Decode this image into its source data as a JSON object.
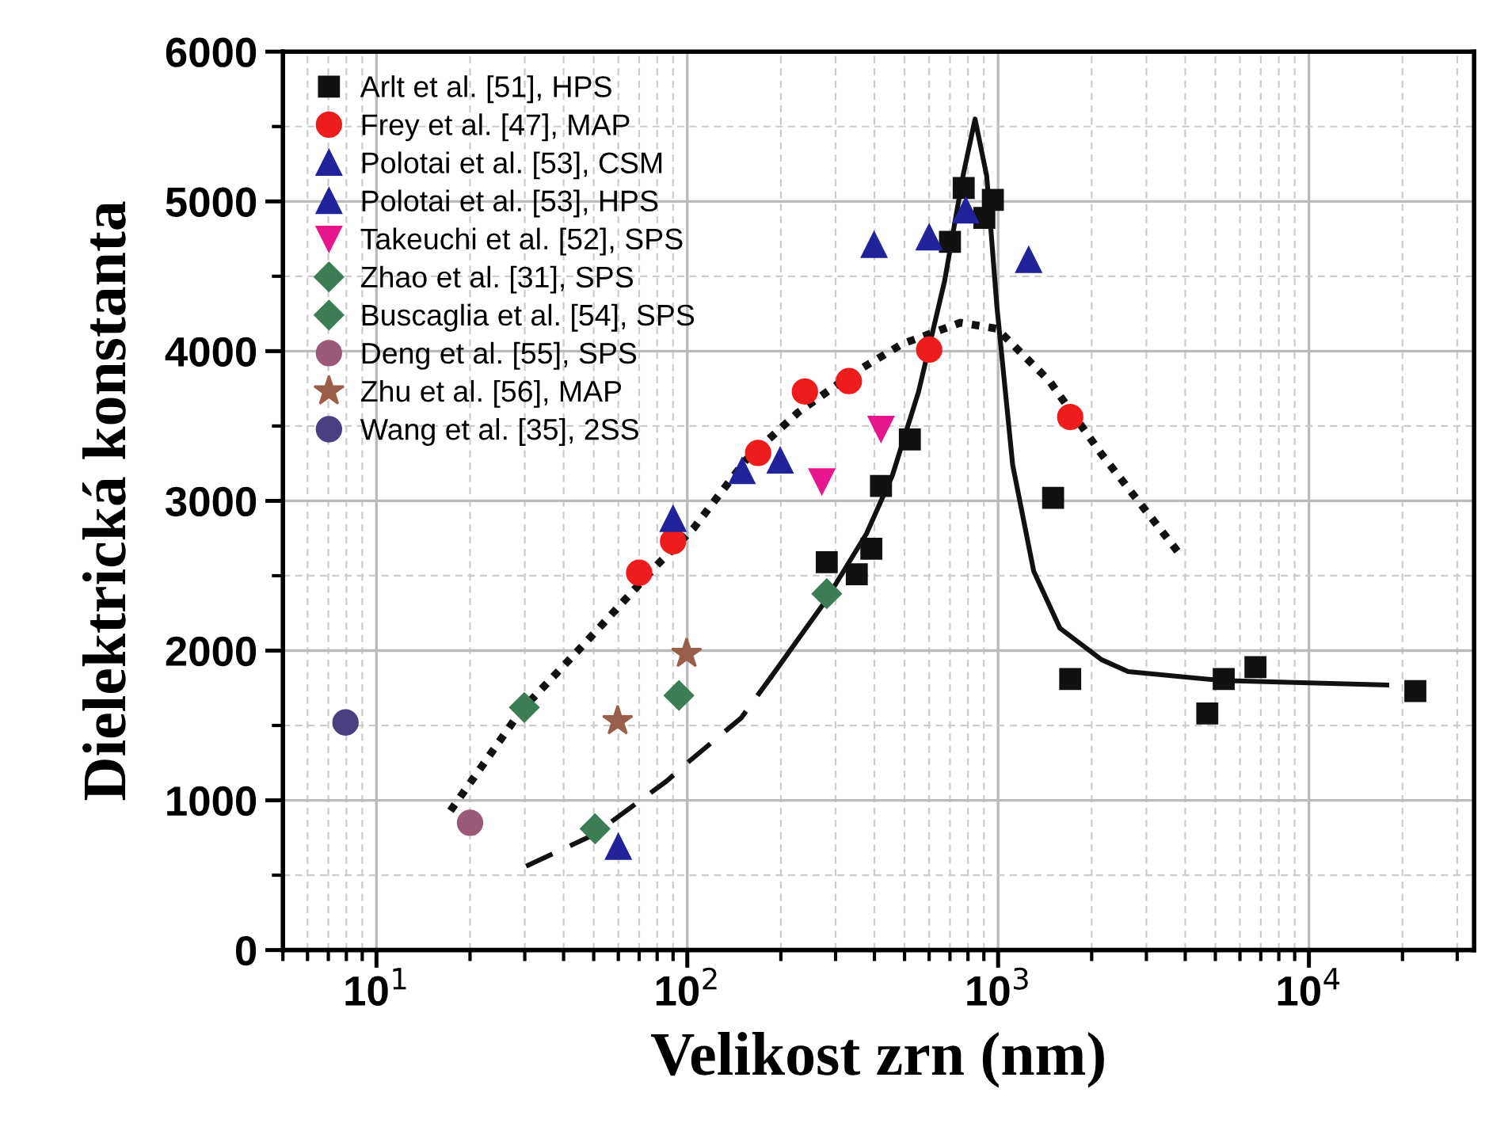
{
  "chart_data": {
    "type": "scatter",
    "xlabel": "Velikost zrn (nm)",
    "ylabel": "Dielektrická konstanta",
    "log": "x",
    "xlim": [
      5,
      34000
    ],
    "xticks": [
      {
        "value": 10,
        "label": "10$^{1}$"
      },
      {
        "value": 100,
        "label": "10$^{2}$"
      },
      {
        "value": 1000,
        "label": "10$^{3}$"
      },
      {
        "value": 10000,
        "label": "10$^{4}$"
      }
    ],
    "ylim": [
      0,
      6000
    ],
    "yticks": [
      0,
      1000,
      2000,
      3000,
      4000,
      5000,
      6000
    ],
    "grid": true,
    "legend": "top left",
    "series": [
      {
        "type": "line",
        "line_style": "solid",
        "color": "#111111",
        "x": [
          187,
          276,
          377,
          457,
          555,
          673,
          771,
          843,
          919,
          991,
          1114,
          1302,
          1580,
          2150,
          2620,
          5250,
          17800
        ],
        "values": [
          1830,
          2320,
          2780,
          3170,
          3730,
          4470,
          5170,
          5550,
          5170,
          4300,
          3240,
          2530,
          2150,
          1940,
          1860,
          1800,
          1770
        ]
      },
      {
        "type": "line",
        "line_style": "dashed",
        "color": "#111111",
        "x": [
          30.3,
          50,
          86,
          100,
          149,
          187
        ],
        "values": [
          560,
          770,
          1130,
          1250,
          1550,
          1830
        ]
      },
      {
        "type": "line",
        "line_style": "dotted",
        "color": "#111111",
        "x": [
          17.3,
          29.2,
          46.4,
          79.8,
          105,
          154,
          227,
          335,
          494,
          757,
          991,
          1463,
          2155,
          3300,
          3920
        ],
        "values": [
          930,
          1600,
          2040,
          2570,
          2820,
          3270,
          3590,
          3840,
          4050,
          4190,
          4150,
          3800,
          3310,
          2820,
          2620
        ]
      },
      {
        "name": "Arlt et al. [51], HPS",
        "marker": "square",
        "color": "#111111",
        "x": [
          775,
          962,
          903,
          700,
          520,
          420,
          391,
          351,
          281,
          1503,
          1706,
          5320,
          4710,
          6730,
          22000
        ],
        "values": [
          5090,
          5010,
          4890,
          4730,
          3410,
          3100,
          2680,
          2510,
          2590,
          3020,
          1810,
          1810,
          1580,
          1890,
          1730
        ]
      },
      {
        "name": "Frey et al. [47], MAP",
        "marker": "circle",
        "color": "#ee1c1c",
        "x": [
          70,
          90,
          169,
          239,
          331,
          600,
          1706
        ],
        "values": [
          2520,
          2730,
          3320,
          3730,
          3800,
          4010,
          3560
        ]
      },
      {
        "name": "Polotai et al. [53], CSM",
        "marker": "triangle",
        "color": "#22229a",
        "x": [
          90,
          150,
          199,
          399,
          600,
          787,
          1254
        ],
        "values": [
          2880,
          3200,
          3270,
          4710,
          4760,
          4940,
          4610
        ]
      },
      {
        "name": "Polotai et al. [53], HPS",
        "marker": "triangle",
        "color": "#22229a",
        "x": [
          60
        ],
        "values": [
          690
        ]
      },
      {
        "name": "Takeuchi et al. [52], SPS",
        "marker": "triangle-down",
        "color": "#e6168c",
        "x": [
          271,
          420
        ],
        "values": [
          3130,
          3480
        ]
      },
      {
        "name": "Zhao et al. [31], SPS",
        "marker": "diamond",
        "color": "#3c7d55",
        "x": [
          50.5,
          94,
          281
        ],
        "values": [
          810,
          1700,
          2380
        ]
      },
      {
        "name": "Buscaglia et al. [54], SPS",
        "marker": "diamond",
        "color": "#3c7d55",
        "x": [
          29.9
        ],
        "values": [
          1620
        ]
      },
      {
        "name": "Deng et al. [55], SPS",
        "marker": "circle",
        "color": "#9b5a78",
        "x": [
          20
        ],
        "values": [
          850
        ]
      },
      {
        "name": "Zhu et al. [56], MAP",
        "marker": "star",
        "color": "#9a5f4a",
        "x": [
          59.7,
          99.5
        ],
        "values": [
          1530,
          1980
        ]
      },
      {
        "name": "Wang et al. [35], 2SS",
        "marker": "circle",
        "color": "#4a3f80",
        "x": [
          7.95
        ],
        "values": [
          1520
        ]
      }
    ]
  }
}
